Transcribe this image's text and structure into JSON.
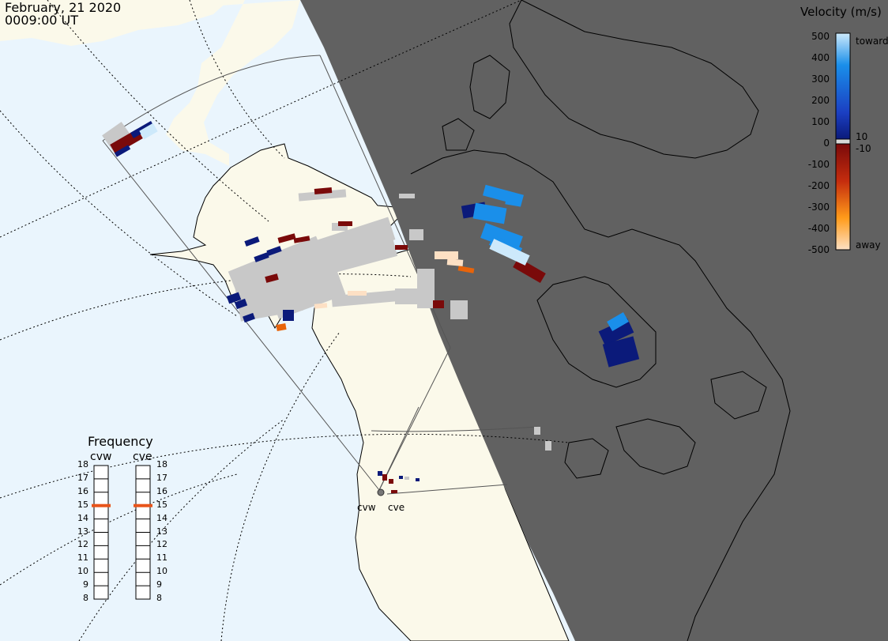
{
  "header": {
    "date": "February, 21 2020",
    "time": "0009:00 UT"
  },
  "velocity_legend": {
    "title": "Velocity (m/s)",
    "ticks": [
      "500",
      "400",
      "300",
      "200",
      "100",
      "0",
      "-100",
      "-200",
      "-300",
      "-400",
      "-500"
    ],
    "small_ticks": [
      "10",
      "-10"
    ],
    "toward_label": "toward",
    "away_label": "away",
    "colors": {
      "toward_max": "#cde9fb",
      "toward_mid": "#1a8fea",
      "toward_min": "#0b1a7a",
      "away_min": "#7a0a0a",
      "away_mid": "#e8640a",
      "away_max": "#fde0c4",
      "ground_scatter": "#c8c8c8"
    }
  },
  "frequency_panel": {
    "title": "Frequency",
    "radars": [
      "cvw",
      "cve"
    ],
    "levels": [
      "18",
      "17",
      "16",
      "15",
      "14",
      "13",
      "12",
      "11",
      "10",
      "9",
      "8"
    ],
    "selected": {
      "cvw": 15,
      "cve": 15
    },
    "marker_color": "#e8541a"
  },
  "radar_sites": [
    "cvw",
    "cve"
  ],
  "map_colors": {
    "ocean": "#eaf5fd",
    "land_day": "#fbf9ea",
    "night": "#616161"
  }
}
